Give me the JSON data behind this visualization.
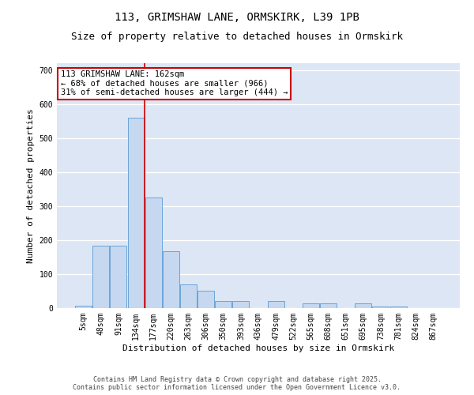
{
  "title_line1": "113, GRIMSHAW LANE, ORMSKIRK, L39 1PB",
  "title_line2": "Size of property relative to detached houses in Ormskirk",
  "xlabel": "Distribution of detached houses by size in Ormskirk",
  "ylabel": "Number of detached properties",
  "bar_color": "#c5d8f0",
  "bar_edge_color": "#5b9bd5",
  "background_color": "#dce6f5",
  "grid_color": "#ffffff",
  "categories": [
    "5sqm",
    "48sqm",
    "91sqm",
    "134sqm",
    "177sqm",
    "220sqm",
    "263sqm",
    "306sqm",
    "350sqm",
    "393sqm",
    "436sqm",
    "479sqm",
    "522sqm",
    "565sqm",
    "608sqm",
    "651sqm",
    "695sqm",
    "738sqm",
    "781sqm",
    "824sqm",
    "867sqm"
  ],
  "values": [
    8,
    183,
    183,
    560,
    325,
    168,
    70,
    50,
    22,
    22,
    0,
    22,
    0,
    14,
    14,
    0,
    14,
    5,
    5,
    1,
    1
  ],
  "ylim": [
    0,
    720
  ],
  "yticks": [
    0,
    100,
    200,
    300,
    400,
    500,
    600,
    700
  ],
  "vline_x": 3.5,
  "annotation_text": "113 GRIMSHAW LANE: 162sqm\n← 68% of detached houses are smaller (966)\n31% of semi-detached houses are larger (444) →",
  "annotation_box_color": "#ffffff",
  "annotation_box_edge_color": "#cc0000",
  "vline_color": "#cc0000",
  "footer_text": "Contains HM Land Registry data © Crown copyright and database right 2025.\nContains public sector information licensed under the Open Government Licence v3.0.",
  "title_fontsize": 10,
  "subtitle_fontsize": 9,
  "tick_fontsize": 7,
  "xlabel_fontsize": 8,
  "ylabel_fontsize": 8,
  "annotation_fontsize": 7.5,
  "footer_fontsize": 6
}
